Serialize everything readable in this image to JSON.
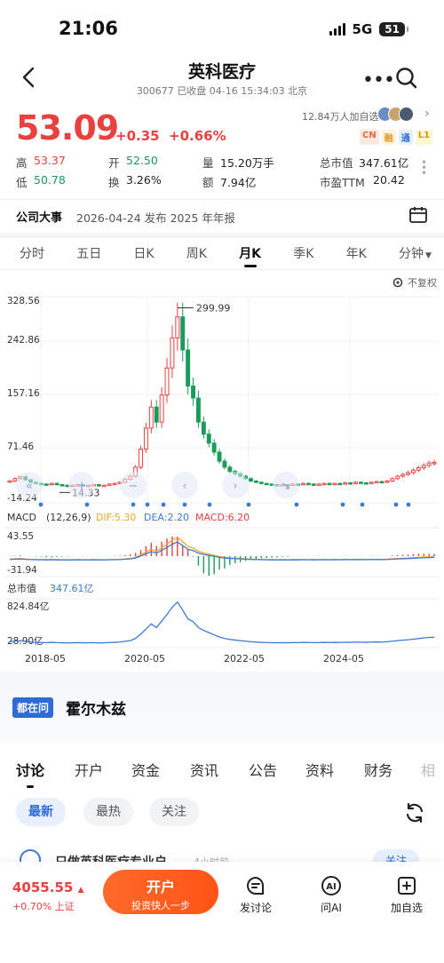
{
  "status": {
    "time": "21:06",
    "network": "5G",
    "battery": "51"
  },
  "nav": {
    "title": "英科医疗",
    "code": "300677",
    "status_text": "已收盘 04-16 15:34:03 北京"
  },
  "quote": {
    "price": "53.09",
    "change": "+0.35",
    "change_pct": "+0.66%",
    "followers": "12.84万人加自选",
    "tags": [
      "CN",
      "融",
      "通",
      "L1"
    ],
    "stats": [
      [
        {
          "label": "高",
          "value": "53.37",
          "color": "red"
        },
        {
          "label": "开",
          "value": "52.50",
          "color": "green"
        },
        {
          "label": "量",
          "value": "15.20万手",
          "color": "plain"
        },
        {
          "label": "总市值",
          "value": "347.61亿",
          "color": "plain"
        }
      ],
      [
        {
          "label": "低",
          "value": "50.78",
          "color": "green"
        },
        {
          "label": "换",
          "value": "3.26%",
          "color": "plain"
        },
        {
          "label": "额",
          "value": "7.94亿",
          "color": "plain"
        },
        {
          "label": "市盈TTM",
          "value": "20.42",
          "color": "plain"
        }
      ]
    ]
  },
  "event": {
    "title": "公司大事",
    "text": "2026-04-24 发布 2025 年年报"
  },
  "period_tabs": [
    "分时",
    "五日",
    "日K",
    "周K",
    "月K",
    "季K",
    "年K",
    "分钟"
  ],
  "period_active": 4,
  "chart": {
    "adjust_label": "不复权",
    "kline_axis": [
      "328.56",
      "242.86",
      "157.16",
      "71.46",
      "-14.24"
    ],
    "kline_high_label": "299.99",
    "kline_low_label": "14.33",
    "macd": {
      "name": "MACD",
      "params": "(12,26,9)",
      "dif": "DIF:5.30",
      "dea": "DEA:2.20",
      "macd": "MACD:6.20",
      "axis_top": "43.55",
      "axis_bottom": "-31.94"
    },
    "mcap": {
      "name": "总市值",
      "value": "347.61亿",
      "axis_top": "824.84亿",
      "axis_bottom": "28.90亿"
    },
    "x_labels": [
      "2018-05",
      "2020-05",
      "2022-05",
      "2024-05"
    ],
    "colors": {
      "up": "#e94040",
      "down": "#1a9b5a",
      "dif": "#f5a623",
      "dea": "#3a7bd5",
      "mcap": "#3a7bd5"
    }
  },
  "chart_data": [
    {
      "type": "candlestick",
      "title": "月K",
      "ylim": [
        -14.24,
        328.56
      ],
      "x_ticks": [
        "2018-05",
        "2020-05",
        "2022-05",
        "2024-05"
      ],
      "close_path": [
        22,
        26,
        29,
        24,
        20,
        18,
        17,
        16,
        18,
        16,
        15,
        14,
        15,
        16,
        15,
        15,
        16,
        14,
        15,
        17,
        18,
        20,
        25,
        30,
        45,
        75,
        110,
        145,
        120,
        165,
        210,
        260,
        295,
        240,
        180,
        160,
        120,
        100,
        85,
        70,
        55,
        45,
        38,
        34,
        30,
        26,
        22,
        20,
        18,
        17,
        16,
        15,
        16,
        15,
        17,
        16,
        18,
        17,
        16,
        17,
        18,
        17,
        18,
        17,
        19,
        18,
        20,
        19,
        18,
        20,
        21,
        20,
        22,
        26,
        30,
        33,
        36,
        40,
        44,
        48,
        52,
        53.09
      ],
      "annotations": [
        {
          "label": "299.99",
          "type": "high"
        },
        {
          "label": "14.33",
          "type": "low"
        }
      ]
    },
    {
      "type": "line",
      "title": "MACD",
      "ylim": [
        -31.94,
        43.55
      ],
      "series": [
        {
          "name": "DIF",
          "value_last": 5.3
        },
        {
          "name": "DEA",
          "value_last": 2.2
        },
        {
          "name": "MACD",
          "value_last": 6.2
        }
      ]
    },
    {
      "type": "area",
      "title": "总市值",
      "ylim": [
        28.9,
        824.84
      ],
      "series": [
        {
          "name": "总市值",
          "value_last": 347.61
        }
      ]
    }
  ],
  "ask": {
    "badge": "都在问",
    "text": "霍尔木兹"
  },
  "discuss_tabs": [
    "讨论",
    "开户",
    "资金",
    "资讯",
    "公告",
    "资料",
    "财务",
    "相"
  ],
  "filters": [
    "最新",
    "最热",
    "关注"
  ],
  "post": {
    "name": "只做英科医疗专业户",
    "time": "4小时前",
    "follow": "关注"
  },
  "bottom": {
    "index_value": "4055.55",
    "index_change": "+0.70%",
    "index_name": "上证",
    "open_main": "开户",
    "open_sub": "投资快人一步",
    "actions": [
      "发讨论",
      "问AI",
      "加自选"
    ]
  }
}
